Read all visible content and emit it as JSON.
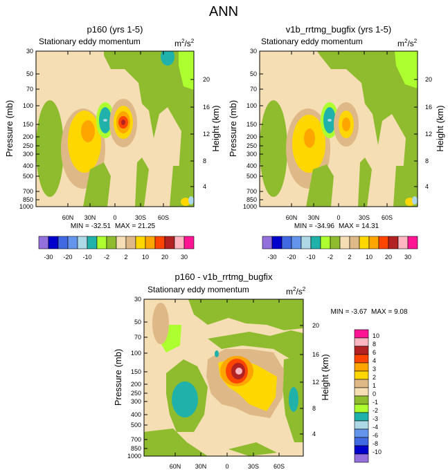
{
  "title": "ANN",
  "chart_data": [
    {
      "type": "heatmap",
      "title": "p160 (yrs 1-5)",
      "subtitle": "Stationary eddy momentum",
      "units_base": "m",
      "units_exp1": "2",
      "units_sep": "/s",
      "units_exp2": "2",
      "ylabel": "Pressure (mb)",
      "ylabel_right": "Height (km)",
      "xticks": [
        "60N",
        "30N",
        "0",
        "30S",
        "60S"
      ],
      "yticks": [
        "30",
        "50",
        "70",
        "100",
        "150",
        "200",
        "250",
        "300",
        "400",
        "500",
        "700",
        "850",
        "1000"
      ],
      "yticks_right": [
        "20",
        "16",
        "12",
        "8",
        "4"
      ],
      "min_label": "MIN = -32.51",
      "max_label": "MAX =  21.25",
      "levels": [
        "-30",
        "-20",
        "-10",
        "-2",
        "2",
        "10",
        "20",
        "30"
      ]
    },
    {
      "type": "heatmap",
      "title": "v1b_rrtmg_bugfix (yrs 1-5)",
      "subtitle": "Stationary eddy momentum",
      "units_base": "m",
      "units_exp1": "2",
      "units_sep": "/s",
      "units_exp2": "2",
      "ylabel": "Pressure (mb)",
      "ylabel_right": "Height (km)",
      "xticks": [
        "60N",
        "30N",
        "0",
        "30S",
        "60S"
      ],
      "yticks": [
        "30",
        "50",
        "70",
        "100",
        "150",
        "200",
        "250",
        "300",
        "400",
        "500",
        "700",
        "850",
        "1000"
      ],
      "yticks_right": [
        "20",
        "16",
        "12",
        "8",
        "4"
      ],
      "min_label": "MIN = -34.96",
      "max_label": "MAX =  14.31",
      "levels": [
        "-30",
        "-20",
        "-10",
        "-2",
        "2",
        "10",
        "20",
        "30"
      ]
    },
    {
      "type": "heatmap",
      "title": "p160 - v1b_rrtmg_bugfix",
      "subtitle": "Stationary eddy momentum",
      "units_base": "m",
      "units_exp1": "2",
      "units_sep": "/s",
      "units_exp2": "2",
      "ylabel": "Pressure (mb)",
      "ylabel_right": "Height (km)",
      "xticks": [
        "60N",
        "30N",
        "0",
        "30S",
        "60S"
      ],
      "yticks": [
        "30",
        "50",
        "70",
        "100",
        "150",
        "200",
        "250",
        "300",
        "400",
        "500",
        "700",
        "850",
        "1000"
      ],
      "yticks_right": [
        "20",
        "16",
        "12",
        "8",
        "4"
      ],
      "min_label": "MIN =  -3.67",
      "max_label": "MAX =   9.08",
      "levels": [
        "10",
        "8",
        "6",
        "4",
        "3",
        "2",
        "1",
        "0",
        "-1",
        "-2",
        "-3",
        "-4",
        "-6",
        "-8",
        "-10"
      ]
    }
  ],
  "colors": {
    "top_bar": [
      "#9370db",
      "#0000cd",
      "#4169e1",
      "#6495ed",
      "#add8e6",
      "#20b2aa",
      "#adff2f",
      "#8fbc2f",
      "#f5deb3",
      "#deb887",
      "#ffd700",
      "#ffa500",
      "#ff4500",
      "#b22222",
      "#ffb6c1",
      "#ff1493"
    ],
    "diff_bar": [
      "#ff1493",
      "#ffb6c1",
      "#b22222",
      "#ff4500",
      "#ffa500",
      "#ffd700",
      "#deb887",
      "#f5deb3",
      "#8fbc2f",
      "#adff2f",
      "#20b2aa",
      "#add8e6",
      "#6495ed",
      "#4169e1",
      "#0000cd",
      "#9370db"
    ],
    "background": "#f5deb3",
    "light_green": "#adff2f",
    "olive": "#8fbc2f",
    "tan": "#deb887",
    "yellow": "#ffd700",
    "orange": "#ffa500",
    "red_orange": "#ff4500",
    "dark_red": "#b22222",
    "pink": "#ffb6c1",
    "teal": "#20b2aa",
    "light_blue": "#add8e6"
  }
}
